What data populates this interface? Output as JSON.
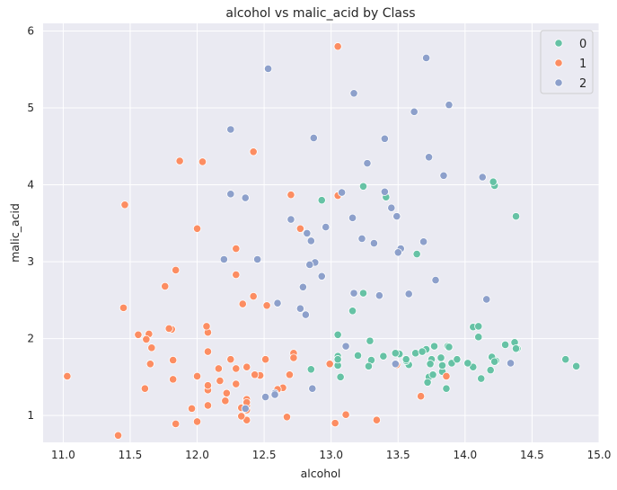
{
  "chart_data": {
    "type": "scatter",
    "title": "alcohol vs malic_acid by Class",
    "xlabel": "alcohol",
    "ylabel": "malic_acid",
    "xlim": [
      10.85,
      15.0
    ],
    "ylim": [
      0.65,
      6.1
    ],
    "xticks": [
      "11.0",
      "11.5",
      "12.0",
      "12.5",
      "13.0",
      "13.5",
      "14.0",
      "14.5",
      "15.0"
    ],
    "yticks": [
      "1",
      "2",
      "3",
      "4",
      "5",
      "6"
    ],
    "grid": true,
    "legend_position": "top-right",
    "series": [
      {
        "name": "0",
        "color": "#66c2a5",
        "points": [
          [
            14.23,
            1.71
          ],
          [
            13.2,
            1.78
          ],
          [
            13.16,
            2.36
          ],
          [
            14.37,
            1.95
          ],
          [
            13.24,
            2.59
          ],
          [
            14.2,
            1.76
          ],
          [
            14.39,
            1.87
          ],
          [
            14.06,
            2.15
          ],
          [
            14.83,
            1.64
          ],
          [
            13.86,
            1.35
          ],
          [
            14.1,
            2.16
          ],
          [
            14.12,
            1.48
          ],
          [
            13.75,
            1.73
          ],
          [
            14.75,
            1.73
          ],
          [
            14.38,
            1.87
          ],
          [
            13.63,
            1.81
          ],
          [
            14.3,
            1.92
          ],
          [
            13.83,
            1.57
          ],
          [
            14.19,
            1.59
          ],
          [
            13.64,
            3.1
          ],
          [
            14.06,
            1.63
          ],
          [
            12.93,
            3.8
          ],
          [
            13.71,
            1.86
          ],
          [
            12.85,
            1.6
          ],
          [
            13.5,
            1.81
          ],
          [
            13.05,
            2.05
          ],
          [
            13.39,
            1.77
          ],
          [
            13.3,
            1.72
          ],
          [
            13.87,
            1.9
          ],
          [
            14.02,
            1.68
          ],
          [
            13.73,
            1.5
          ],
          [
            13.58,
            1.66
          ],
          [
            13.68,
            1.83
          ],
          [
            13.76,
            1.53
          ],
          [
            13.51,
            1.8
          ],
          [
            13.48,
            1.81
          ],
          [
            13.28,
            1.64
          ],
          [
            13.05,
            1.65
          ],
          [
            13.07,
            1.5
          ],
          [
            14.22,
            3.99
          ],
          [
            13.56,
            1.71
          ],
          [
            13.41,
            3.84
          ],
          [
            13.88,
            1.89
          ],
          [
            13.24,
            3.98
          ],
          [
            13.05,
            1.77
          ],
          [
            14.21,
            4.04
          ],
          [
            14.38,
            3.59
          ],
          [
            13.9,
            1.68
          ],
          [
            14.1,
            2.02
          ],
          [
            13.94,
            1.73
          ],
          [
            13.05,
            1.73
          ],
          [
            13.83,
            1.65
          ],
          [
            13.82,
            1.75
          ],
          [
            13.77,
            1.9
          ],
          [
            13.74,
            1.67
          ],
          [
            13.56,
            1.73
          ],
          [
            14.22,
            1.7
          ],
          [
            13.29,
            1.97
          ],
          [
            13.72,
            1.43
          ]
        ]
      },
      {
        "name": "1",
        "color": "#fc8d62",
        "points": [
          [
            12.37,
            0.94
          ],
          [
            12.33,
            1.1
          ],
          [
            12.64,
            1.36
          ],
          [
            13.67,
            1.25
          ],
          [
            12.37,
            1.13
          ],
          [
            12.17,
            1.45
          ],
          [
            12.37,
            1.21
          ],
          [
            13.11,
            1.01
          ],
          [
            12.37,
            1.17
          ],
          [
            13.34,
            0.94
          ],
          [
            12.21,
            1.19
          ],
          [
            12.29,
            1.61
          ],
          [
            13.86,
            1.51
          ],
          [
            13.49,
            1.66
          ],
          [
            12.99,
            1.67
          ],
          [
            11.96,
            1.09
          ],
          [
            11.66,
            1.88
          ],
          [
            13.03,
            0.9
          ],
          [
            11.84,
            2.89
          ],
          [
            12.33,
            0.99
          ],
          [
            12.7,
            3.87
          ],
          [
            12.0,
            0.92
          ],
          [
            12.72,
            1.81
          ],
          [
            12.08,
            1.13
          ],
          [
            13.05,
            3.86
          ],
          [
            11.84,
            0.89
          ],
          [
            12.67,
            0.98
          ],
          [
            12.16,
            1.61
          ],
          [
            11.65,
            1.67
          ],
          [
            11.64,
            2.06
          ],
          [
            12.08,
            1.33
          ],
          [
            12.08,
            1.83
          ],
          [
            12.0,
            1.51
          ],
          [
            12.69,
            1.53
          ],
          [
            12.29,
            2.83
          ],
          [
            11.62,
            1.99
          ],
          [
            12.47,
            1.52
          ],
          [
            11.81,
            2.12
          ],
          [
            12.29,
            1.41
          ],
          [
            12.37,
            1.07
          ],
          [
            12.29,
            3.17
          ],
          [
            12.08,
            2.08
          ],
          [
            12.6,
            1.34
          ],
          [
            12.34,
            2.45
          ],
          [
            11.82,
            1.72
          ],
          [
            12.51,
            1.73
          ],
          [
            12.42,
            2.55
          ],
          [
            12.25,
            1.73
          ],
          [
            12.72,
            1.75
          ],
          [
            12.22,
            1.29
          ],
          [
            11.61,
            1.35
          ],
          [
            11.46,
            3.74
          ],
          [
            12.52,
            2.43
          ],
          [
            11.76,
            2.68
          ],
          [
            11.41,
            0.74
          ],
          [
            12.08,
            1.39
          ],
          [
            11.03,
            1.51
          ],
          [
            11.82,
            1.47
          ],
          [
            12.42,
            4.43
          ],
          [
            12.77,
            3.43
          ],
          [
            12.0,
            3.43
          ],
          [
            11.45,
            2.4
          ],
          [
            11.56,
            2.05
          ],
          [
            12.42,
            4.43
          ],
          [
            13.05,
            5.8
          ],
          [
            11.87,
            4.31
          ],
          [
            12.07,
            2.16
          ],
          [
            12.43,
            1.53
          ],
          [
            11.79,
            2.13
          ],
          [
            12.37,
            1.63
          ],
          [
            12.04,
            4.3
          ]
        ]
      },
      {
        "name": "2",
        "color": "#8da0cb",
        "points": [
          [
            12.86,
            1.35
          ],
          [
            12.88,
            2.99
          ],
          [
            12.81,
            2.31
          ],
          [
            12.7,
            3.55
          ],
          [
            12.51,
            1.24
          ],
          [
            12.6,
            2.46
          ],
          [
            12.25,
            4.72
          ],
          [
            12.53,
            5.51
          ],
          [
            13.49,
            3.59
          ],
          [
            12.84,
            2.96
          ],
          [
            12.93,
            2.81
          ],
          [
            13.36,
            2.56
          ],
          [
            13.52,
            3.17
          ],
          [
            13.62,
            4.95
          ],
          [
            12.25,
            3.88
          ],
          [
            13.16,
            3.57
          ],
          [
            13.88,
            5.04
          ],
          [
            12.87,
            4.61
          ],
          [
            13.32,
            3.24
          ],
          [
            13.08,
            3.9
          ],
          [
            13.5,
            3.12
          ],
          [
            12.79,
            2.67
          ],
          [
            13.11,
            1.9
          ],
          [
            13.23,
            3.3
          ],
          [
            12.58,
            1.29
          ],
          [
            13.17,
            5.19
          ],
          [
            13.84,
            4.12
          ],
          [
            12.45,
            3.03
          ],
          [
            14.34,
            1.68
          ],
          [
            13.48,
            1.67
          ],
          [
            12.36,
            3.83
          ],
          [
            13.69,
            3.26
          ],
          [
            12.85,
            3.27
          ],
          [
            12.96,
            3.45
          ],
          [
            13.78,
            2.76
          ],
          [
            13.73,
            4.36
          ],
          [
            13.45,
            3.7
          ],
          [
            12.82,
            3.37
          ],
          [
            13.58,
            2.58
          ],
          [
            13.4,
            4.6
          ],
          [
            12.2,
            3.03
          ],
          [
            12.77,
            2.39
          ],
          [
            14.16,
            2.51
          ],
          [
            13.71,
            5.65
          ],
          [
            13.4,
            3.91
          ],
          [
            13.27,
            4.28
          ],
          [
            13.17,
            2.59
          ],
          [
            14.13,
            4.1
          ],
          [
            12.36,
            1.09
          ],
          [
            12.58,
            1.27
          ]
        ]
      }
    ]
  }
}
